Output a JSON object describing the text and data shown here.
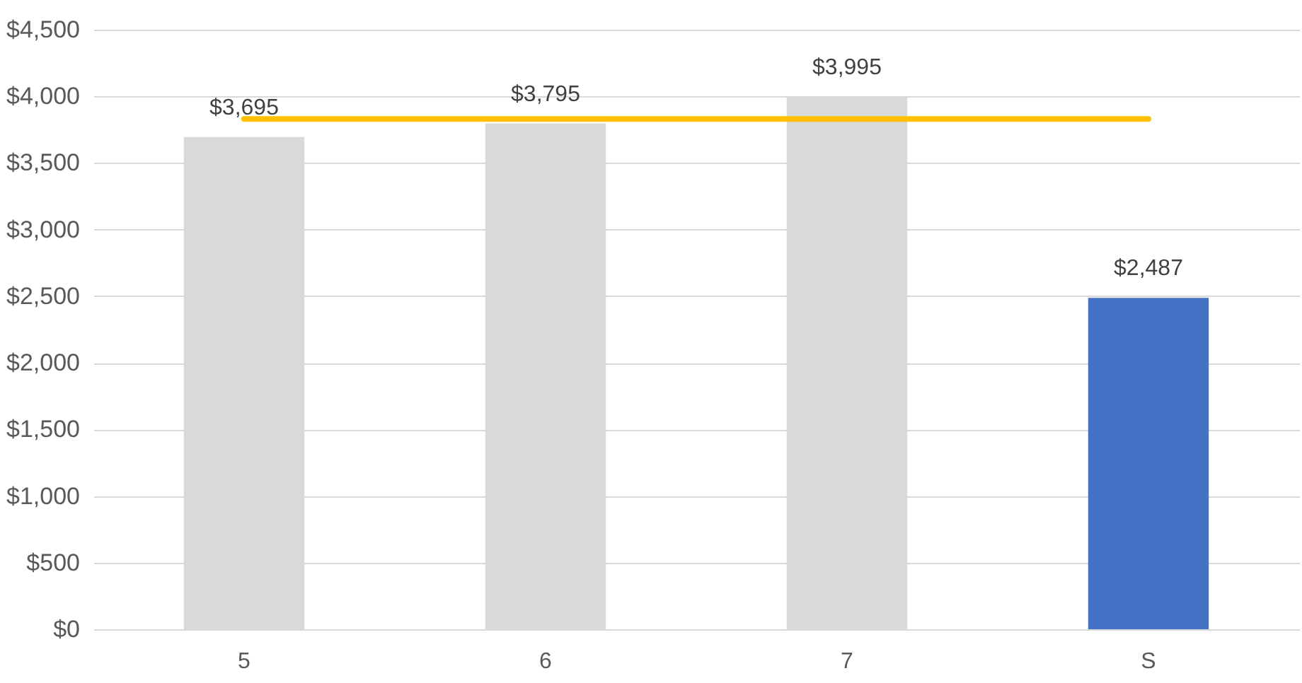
{
  "chart_data": {
    "type": "bar",
    "categories": [
      "5",
      "6",
      "7",
      "S"
    ],
    "series": [
      {
        "colors": [
          "#d9d9d9",
          "#d9d9d9",
          "#d9d9d9",
          "#4472c4"
        ],
        "values": [
          3695,
          3795,
          3995,
          2487
        ],
        "value_labels": [
          "$3,695",
          "$3,795",
          "$3,995",
          "$2,487"
        ]
      },
      {
        "type": "line",
        "color": "#ffc000",
        "values": [
          3830,
          3830,
          3830,
          3830
        ]
      }
    ],
    "ylim": [
      0,
      4500
    ],
    "yticks": [
      {
        "value": 0,
        "label": "$0"
      },
      {
        "value": 500,
        "label": "$500"
      },
      {
        "value": 1000,
        "label": "$1,000"
      },
      {
        "value": 1500,
        "label": "$1,500"
      },
      {
        "value": 2000,
        "label": "$2,000"
      },
      {
        "value": 2500,
        "label": "$2,500"
      },
      {
        "value": 3000,
        "label": "$3,000"
      },
      {
        "value": 3500,
        "label": "$3,500"
      },
      {
        "value": 4000,
        "label": "$4,000"
      },
      {
        "value": 4500,
        "label": "$4,500"
      }
    ],
    "grid": "y"
  }
}
